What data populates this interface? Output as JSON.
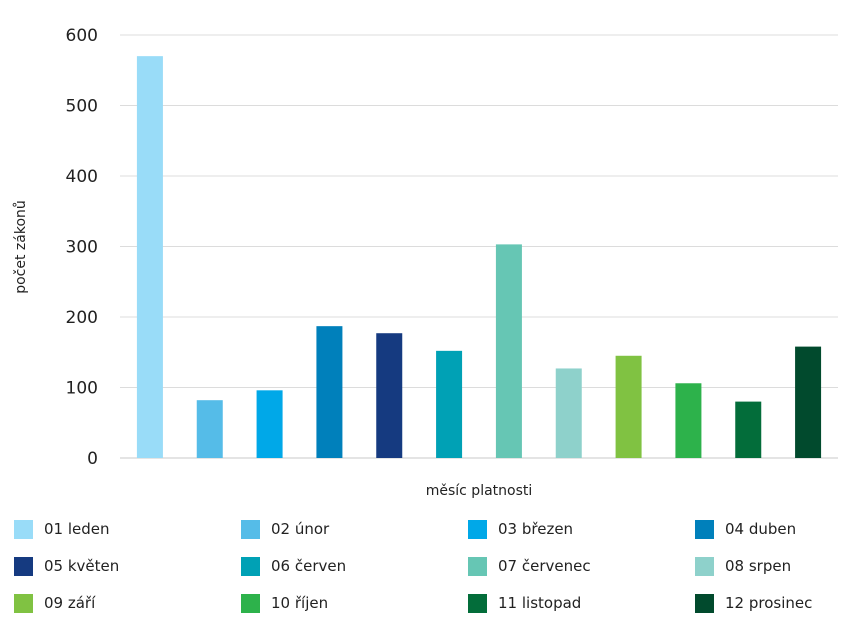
{
  "chart_data": {
    "type": "bar",
    "categories": [
      "01 leden",
      "02 únor",
      "03 březen",
      "04 duben",
      "05 květen",
      "06 červen",
      "07 červenec",
      "08 srpen",
      "09 září",
      "10 říjen",
      "11 listopad",
      "12 prosinec"
    ],
    "values": [
      570,
      82,
      96,
      187,
      177,
      152,
      303,
      127,
      145,
      106,
      80,
      158
    ],
    "colors": [
      "#99dcf8",
      "#55bce8",
      "#00a8e8",
      "#0080bb",
      "#153a80",
      "#00a1b5",
      "#66c6b4",
      "#8ed1cb",
      "#80c242",
      "#2db24b",
      "#036d3a",
      "#014a2d"
    ],
    "xlabel": "měsíc platnosti",
    "ylabel": "počet zákonů",
    "ylim": [
      0,
      600
    ],
    "yticks": [
      "0",
      "100",
      "200",
      "300",
      "400",
      "500",
      "600"
    ],
    "grid": true,
    "legend_position": "bottom"
  }
}
